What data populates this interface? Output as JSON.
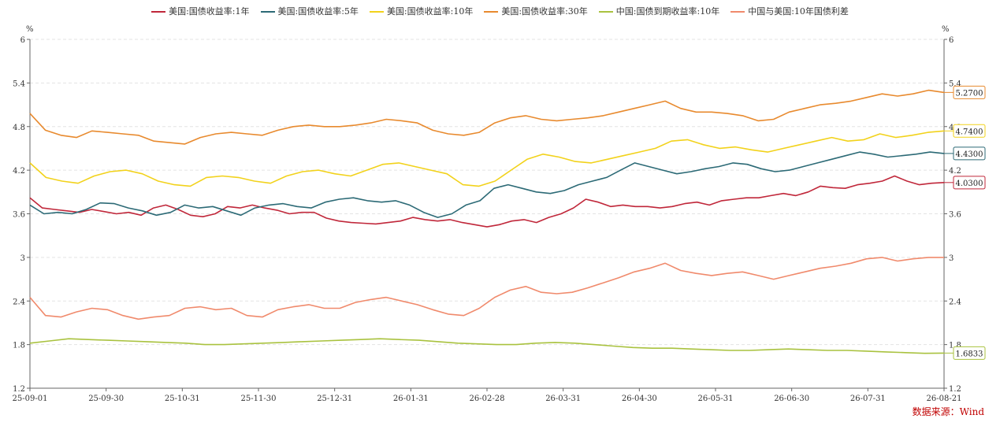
{
  "chart_data": {
    "type": "line",
    "unit_left": "%",
    "unit_right": "%",
    "ylim": [
      1.2,
      6
    ],
    "y_ticks": [
      "1.2",
      "1.8",
      "2.4",
      "3",
      "3.6",
      "4.2",
      "4.8",
      "5.4",
      "6"
    ],
    "x_ticks": [
      "25-09-01",
      "25-09-30",
      "25-10-31",
      "25-11-30",
      "25-12-31",
      "26-01-31",
      "26-02-28",
      "26-03-31",
      "26-04-30",
      "26-05-31",
      "26-06-30",
      "26-07-31",
      "26-08-21"
    ],
    "legend_position": "top-center",
    "grid": true,
    "series": [
      {
        "name": "美国:国债收益率:1年",
        "color": "#c0273a",
        "end_label": "4.0300",
        "values": [
          3.82,
          3.68,
          3.66,
          3.64,
          3.62,
          3.66,
          3.63,
          3.6,
          3.62,
          3.58,
          3.68,
          3.72,
          3.66,
          3.58,
          3.56,
          3.6,
          3.7,
          3.68,
          3.72,
          3.68,
          3.65,
          3.6,
          3.62,
          3.62,
          3.54,
          3.5,
          3.48,
          3.47,
          3.46,
          3.48,
          3.5,
          3.55,
          3.52,
          3.5,
          3.52,
          3.48,
          3.45,
          3.42,
          3.45,
          3.5,
          3.52,
          3.48,
          3.55,
          3.6,
          3.68,
          3.8,
          3.76,
          3.7,
          3.72,
          3.7,
          3.7,
          3.68,
          3.7,
          3.74,
          3.76,
          3.72,
          3.78,
          3.8,
          3.82,
          3.82,
          3.85,
          3.88,
          3.85,
          3.9,
          3.98,
          3.96,
          3.95,
          4.0,
          4.02,
          4.05,
          4.12,
          4.05,
          4.0,
          4.02,
          4.03
        ]
      },
      {
        "name": "美国:国债收益率:5年",
        "color": "#2c6a76",
        "end_label": "4.4300",
        "values": [
          3.72,
          3.6,
          3.62,
          3.6,
          3.66,
          3.75,
          3.74,
          3.68,
          3.64,
          3.58,
          3.62,
          3.72,
          3.68,
          3.7,
          3.64,
          3.58,
          3.68,
          3.72,
          3.74,
          3.7,
          3.68,
          3.76,
          3.8,
          3.82,
          3.78,
          3.76,
          3.78,
          3.72,
          3.62,
          3.55,
          3.6,
          3.72,
          3.78,
          3.95,
          4.0,
          3.95,
          3.9,
          3.88,
          3.92,
          4.0,
          4.05,
          4.1,
          4.2,
          4.3,
          4.25,
          4.2,
          4.15,
          4.18,
          4.22,
          4.25,
          4.3,
          4.28,
          4.22,
          4.18,
          4.2,
          4.25,
          4.3,
          4.35,
          4.4,
          4.45,
          4.42,
          4.38,
          4.4,
          4.42,
          4.45,
          4.43
        ]
      },
      {
        "name": "美国:国债收益率:10年",
        "color": "#f2d21b",
        "end_label": "4.7400",
        "values": [
          4.3,
          4.1,
          4.05,
          4.02,
          4.12,
          4.18,
          4.2,
          4.15,
          4.05,
          4.0,
          3.98,
          4.1,
          4.12,
          4.1,
          4.05,
          4.02,
          4.12,
          4.18,
          4.2,
          4.15,
          4.12,
          4.2,
          4.28,
          4.3,
          4.25,
          4.2,
          4.15,
          4.0,
          3.98,
          4.05,
          4.2,
          4.35,
          4.42,
          4.38,
          4.32,
          4.3,
          4.35,
          4.4,
          4.45,
          4.5,
          4.6,
          4.62,
          4.55,
          4.5,
          4.52,
          4.48,
          4.45,
          4.5,
          4.55,
          4.6,
          4.65,
          4.6,
          4.62,
          4.7,
          4.65,
          4.68,
          4.72,
          4.74
        ]
      },
      {
        "name": "美国:国债收益率:30年",
        "color": "#e88a2e",
        "end_label": "5.2700",
        "values": [
          4.98,
          4.75,
          4.68,
          4.65,
          4.74,
          4.72,
          4.7,
          4.68,
          4.6,
          4.58,
          4.56,
          4.65,
          4.7,
          4.72,
          4.7,
          4.68,
          4.75,
          4.8,
          4.82,
          4.8,
          4.8,
          4.82,
          4.85,
          4.9,
          4.88,
          4.85,
          4.75,
          4.7,
          4.68,
          4.72,
          4.85,
          4.92,
          4.95,
          4.9,
          4.88,
          4.9,
          4.92,
          4.95,
          5.0,
          5.05,
          5.1,
          5.15,
          5.05,
          5.0,
          5.0,
          4.98,
          4.95,
          4.88,
          4.9,
          5.0,
          5.05,
          5.1,
          5.12,
          5.15,
          5.2,
          5.25,
          5.22,
          5.25,
          5.3,
          5.27
        ]
      },
      {
        "name": "中国:国债到期收益率:10年",
        "color": "#a9c23f",
        "end_label": "1.6833",
        "values": [
          1.82,
          1.85,
          1.88,
          1.87,
          1.86,
          1.85,
          1.84,
          1.83,
          1.82,
          1.8,
          1.8,
          1.81,
          1.82,
          1.83,
          1.84,
          1.85,
          1.86,
          1.87,
          1.88,
          1.87,
          1.86,
          1.84,
          1.82,
          1.81,
          1.8,
          1.8,
          1.82,
          1.83,
          1.82,
          1.8,
          1.78,
          1.76,
          1.75,
          1.75,
          1.74,
          1.73,
          1.72,
          1.72,
          1.73,
          1.74,
          1.73,
          1.72,
          1.72,
          1.71,
          1.7,
          1.69,
          1.68,
          1.6833
        ]
      },
      {
        "name": "中国与美国:10年国债利差",
        "color": "#f08a6c",
        "end_label": "",
        "values": [
          2.45,
          2.2,
          2.18,
          2.25,
          2.3,
          2.28,
          2.2,
          2.15,
          2.18,
          2.2,
          2.3,
          2.32,
          2.28,
          2.3,
          2.2,
          2.18,
          2.28,
          2.32,
          2.35,
          2.3,
          2.3,
          2.38,
          2.42,
          2.45,
          2.4,
          2.35,
          2.28,
          2.22,
          2.2,
          2.3,
          2.45,
          2.55,
          2.6,
          2.52,
          2.5,
          2.52,
          2.58,
          2.65,
          2.72,
          2.8,
          2.85,
          2.92,
          2.82,
          2.78,
          2.75,
          2.78,
          2.8,
          2.75,
          2.7,
          2.75,
          2.8,
          2.85,
          2.88,
          2.92,
          2.98,
          3.0,
          2.95,
          2.98,
          3.0,
          3.0
        ]
      }
    ]
  },
  "source_label": "数据来源：Wind"
}
